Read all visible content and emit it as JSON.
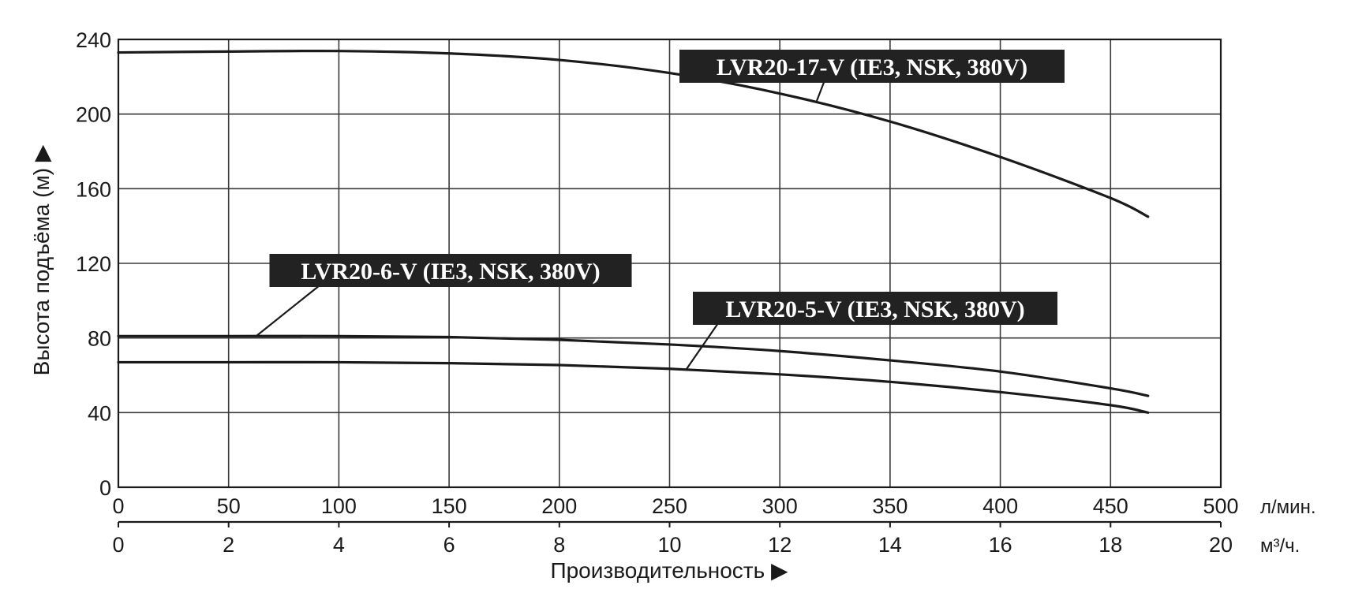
{
  "chart_data": {
    "type": "line",
    "title": "",
    "ylabel": "Высота подъёма (м) ▶",
    "xlabel": "Производительность ▶",
    "x_unit": "л/мин.",
    "x2_unit": "м³/ч.",
    "xlim": [
      0,
      500
    ],
    "ylim": [
      0,
      240
    ],
    "x_ticks": [
      "0",
      "50",
      "100",
      "150",
      "200",
      "250",
      "300",
      "350",
      "400",
      "450",
      "500"
    ],
    "x2_ticks": [
      "0",
      "2",
      "4",
      "6",
      "8",
      "10",
      "12",
      "14",
      "16",
      "18",
      "20"
    ],
    "y_ticks": [
      "0",
      "40",
      "80",
      "120",
      "160",
      "200",
      "240"
    ],
    "grid": true,
    "series": [
      {
        "name": "LVR20-17-V (IE3, NSK, 380V)",
        "x": [
          0,
          50,
          100,
          150,
          200,
          250,
          300,
          350,
          400,
          450,
          467
        ],
        "y": [
          233,
          233.5,
          233.8,
          232.5,
          229,
          222,
          211,
          196,
          177,
          155,
          145
        ]
      },
      {
        "name": "LVR20-6-V (IE3, NSK, 380V)",
        "x": [
          0,
          50,
          100,
          150,
          200,
          250,
          300,
          350,
          400,
          450,
          467
        ],
        "y": [
          81,
          81,
          81,
          80.5,
          79,
          76.5,
          73,
          68,
          62,
          53,
          49
        ]
      },
      {
        "name": "LVR20-5-V (IE3, NSK, 380V)",
        "x": [
          0,
          50,
          100,
          150,
          200,
          250,
          300,
          350,
          400,
          450,
          467
        ],
        "y": [
          67,
          67,
          67,
          66.5,
          65.5,
          63.5,
          60.5,
          56.5,
          51,
          44,
          40
        ]
      }
    ],
    "annotations": [
      {
        "text": "LVR20-17-V (IE3, NSK, 380V)"
      },
      {
        "text": "LVR20-6-V (IE3, NSK, 380V)"
      },
      {
        "text": "LVR20-5-V (IE3, NSK, 380V)"
      }
    ]
  }
}
